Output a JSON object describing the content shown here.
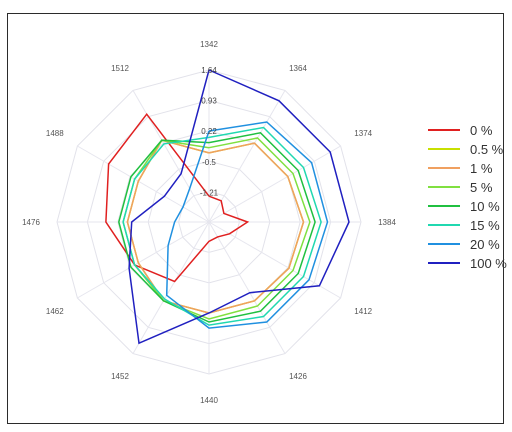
{
  "chart_data": {
    "type": "radar",
    "categories": [
      "1342",
      "1364",
      "1374",
      "1384",
      "1412",
      "1426",
      "1440",
      "1452",
      "1462",
      "1476",
      "1488",
      "1512"
    ],
    "rlim": [
      -1.9,
      1.64
    ],
    "rticks": [
      1.64,
      0.93,
      0.22,
      -0.5,
      -1.21
    ],
    "rtick_labels": [
      "1.64",
      "0.93",
      "0.22",
      "-0.5",
      "-1.21"
    ],
    "grid": true,
    "legend_position": "right",
    "series": [
      {
        "name": "0 %",
        "color": "#e02020",
        "values": [
          -1.3,
          -1.33,
          -1.5,
          -1.0,
          -1.35,
          -1.5,
          -1.45,
          -0.3,
          0.1,
          0.5,
          0.8,
          1.0
        ]
      },
      {
        "name": "0.5 %",
        "color": "#c8e000",
        "values": [
          -0.29,
          0.22,
          0.22,
          0.3,
          0.25,
          0.22,
          0.22,
          0.22,
          0.0,
          0.0,
          0.0,
          0.3
        ]
      },
      {
        "name": "1 %",
        "color": "#f0a060",
        "values": [
          -0.29,
          0.22,
          0.22,
          0.3,
          0.25,
          0.22,
          0.22,
          0.22,
          0.0,
          0.0,
          0.0,
          0.3
        ]
      },
      {
        "name": "5 %",
        "color": "#80e040",
        "values": [
          -0.17,
          0.36,
          0.36,
          0.45,
          0.36,
          0.36,
          0.36,
          0.22,
          0.1,
          0.1,
          0.1,
          0.3
        ]
      },
      {
        "name": "10 %",
        "color": "#20c040",
        "values": [
          -0.05,
          0.5,
          0.5,
          0.57,
          0.5,
          0.5,
          0.43,
          0.22,
          0.2,
          0.2,
          0.2,
          0.3
        ]
      },
      {
        "name": "15 %",
        "color": "#20d8b0",
        "values": [
          0.07,
          0.64,
          0.64,
          0.71,
          0.64,
          0.64,
          0.5,
          0.17,
          0.1,
          0.1,
          0.1,
          0.2
        ]
      },
      {
        "name": "20 %",
        "color": "#2090e0",
        "values": [
          0.22,
          0.79,
          0.86,
          0.86,
          0.79,
          0.79,
          0.57,
          0.07,
          -0.8,
          -1.1,
          -1.2,
          -1.0
        ]
      },
      {
        "name": "100 %",
        "color": "#2020c0",
        "values": [
          1.64,
          1.36,
          1.36,
          1.36,
          1.07,
          0.0,
          0.22,
          1.36,
          0.25,
          -0.1,
          -0.7,
          -0.6
        ]
      }
    ]
  }
}
